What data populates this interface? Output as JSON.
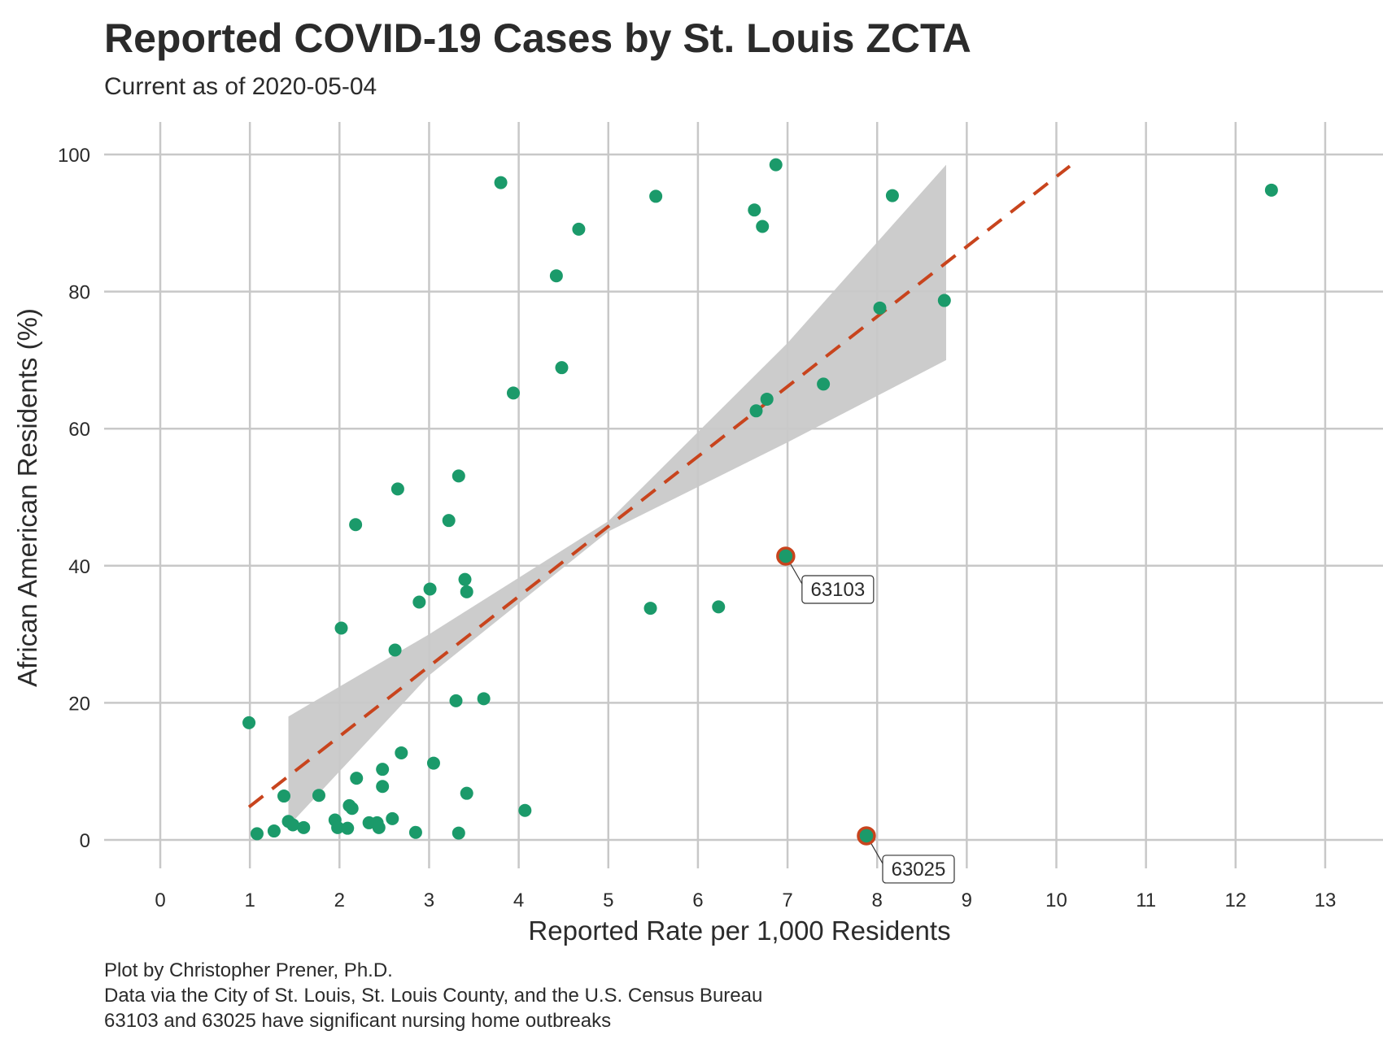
{
  "header": {
    "title": "Reported COVID-19 Cases by St. Louis ZCTA",
    "subtitle": "Current as of 2020-05-04"
  },
  "caption": {
    "line1": "Plot by Christopher Prener, Ph.D.",
    "line2": "Data via the City of St. Louis, St. Louis County, and the U.S. Census Bureau",
    "line3": "63103 and 63025 have significant nursing home outbreaks"
  },
  "colors": {
    "point": "#1b9a6a",
    "highlight_outline": "#c8441d",
    "trend_line": "#c8441d",
    "confidence_band": "#c9c9c9",
    "grid": "#c8c8c8"
  },
  "chart_data": {
    "type": "scatter",
    "xlabel": "Reported Rate per 1,000 Residents",
    "ylabel": "African American Residents (%)",
    "xlim": [
      0,
      13
    ],
    "ylim": [
      0,
      100
    ],
    "xticks": [
      0,
      1,
      2,
      3,
      4,
      5,
      6,
      7,
      8,
      9,
      10,
      11,
      12,
      13
    ],
    "yticks": [
      0,
      20,
      40,
      60,
      80,
      100
    ],
    "grid": true,
    "points": [
      [
        0.99,
        17.1
      ],
      [
        1.08,
        0.9
      ],
      [
        1.27,
        1.3
      ],
      [
        1.38,
        6.4
      ],
      [
        1.43,
        2.7
      ],
      [
        1.48,
        2.2
      ],
      [
        1.6,
        1.8
      ],
      [
        1.77,
        6.5
      ],
      [
        1.95,
        2.9
      ],
      [
        1.98,
        1.8
      ],
      [
        2.02,
        30.9
      ],
      [
        2.09,
        1.7
      ],
      [
        2.11,
        5.0
      ],
      [
        2.14,
        4.6
      ],
      [
        2.18,
        46.0
      ],
      [
        2.19,
        9.0
      ],
      [
        2.33,
        2.5
      ],
      [
        2.42,
        2.5
      ],
      [
        2.44,
        1.8
      ],
      [
        2.48,
        10.3
      ],
      [
        2.48,
        7.8
      ],
      [
        2.59,
        3.1
      ],
      [
        2.62,
        27.7
      ],
      [
        2.65,
        51.2
      ],
      [
        2.69,
        12.7
      ],
      [
        2.85,
        1.1
      ],
      [
        2.89,
        34.7
      ],
      [
        3.01,
        36.6
      ],
      [
        3.05,
        11.2
      ],
      [
        3.22,
        46.6
      ],
      [
        3.3,
        20.3
      ],
      [
        3.33,
        53.1
      ],
      [
        3.33,
        1.0
      ],
      [
        3.4,
        38.0
      ],
      [
        3.42,
        36.2
      ],
      [
        3.42,
        6.8
      ],
      [
        3.61,
        20.6
      ],
      [
        3.8,
        95.9
      ],
      [
        3.94,
        65.2
      ],
      [
        4.07,
        4.3
      ],
      [
        4.42,
        82.3
      ],
      [
        4.48,
        68.9
      ],
      [
        4.67,
        89.1
      ],
      [
        5.47,
        33.8
      ],
      [
        5.53,
        93.9
      ],
      [
        6.23,
        34.0
      ],
      [
        6.63,
        91.9
      ],
      [
        6.65,
        62.6
      ],
      [
        6.72,
        89.5
      ],
      [
        6.77,
        64.3
      ],
      [
        6.87,
        98.5
      ],
      [
        7.4,
        66.5
      ],
      [
        8.03,
        77.6
      ],
      [
        8.17,
        94.0
      ],
      [
        8.75,
        78.7
      ],
      [
        12.4,
        94.8
      ]
    ],
    "highlighted": [
      {
        "label": "63103",
        "x": 6.98,
        "y": 41.4
      },
      {
        "label": "63025",
        "x": 7.88,
        "y": 0.6
      }
    ],
    "trend": {
      "style": "dashed linear fit",
      "line": [
        [
          0.99,
          4.8
        ],
        [
          10.15,
          98.3
        ]
      ],
      "band": {
        "x": [
          1.43,
          3.0,
          5.0,
          7.0,
          8.77
        ],
        "lower": [
          2.0,
          24.0,
          45.0,
          58.0,
          70.0
        ],
        "upper": [
          18.0,
          30.0,
          46.5,
          72.5,
          98.5
        ]
      }
    }
  }
}
